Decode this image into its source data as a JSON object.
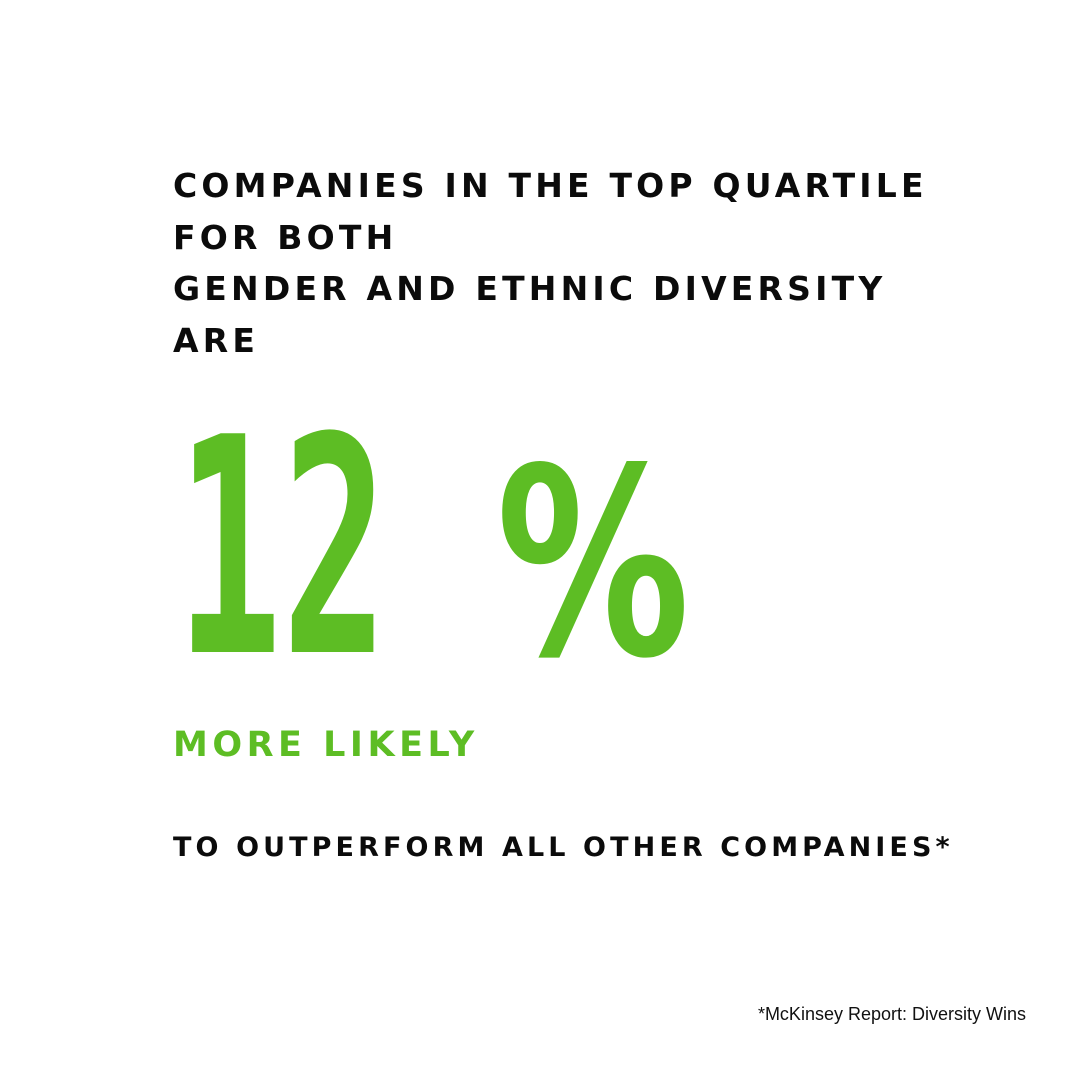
{
  "headline": {
    "lines": [
      "COMPANIES IN THE TOP QUARTILE",
      "FOR BOTH",
      "GENDER AND ETHNIC DIVERSITY",
      "ARE"
    ]
  },
  "stat": {
    "number": "12",
    "unit": "%"
  },
  "subhead": "MORE LIKELY",
  "tagline": "TO OUTPERFORM ALL OTHER COMPANIES*",
  "footnote": "*McKinsey Report: Diversity Wins",
  "colors": {
    "accent": "#5dbd24",
    "text": "#0b0b0b",
    "background": "#ffffff"
  }
}
